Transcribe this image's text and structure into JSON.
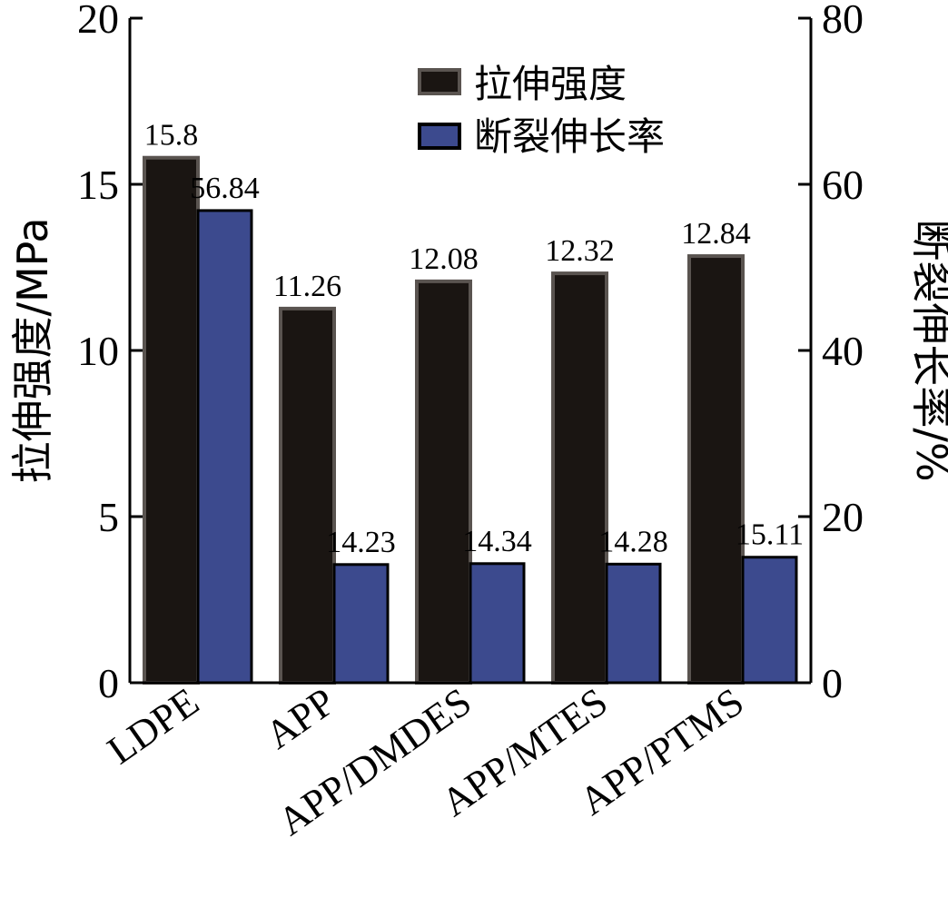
{
  "chart_data": {
    "type": "bar",
    "categories": [
      "LDPE",
      "APP",
      "APP/DMDES",
      "APP/MTES",
      "APP/PTMS"
    ],
    "series": [
      {
        "name": "拉伸强度",
        "axis": "left",
        "color": "#1a1512",
        "edge_color": "#5a5450",
        "values": [
          15.8,
          11.26,
          12.08,
          12.32,
          12.84
        ],
        "labels": [
          "15.8",
          "11.26",
          "12.08",
          "12.32",
          "12.84"
        ]
      },
      {
        "name": "断裂伸长率",
        "axis": "right",
        "color": "#3c4a8e",
        "edge_color": "#000000",
        "values": [
          56.84,
          14.23,
          14.34,
          14.28,
          15.11
        ],
        "labels": [
          "56.84",
          "14.23",
          "14.34",
          "14.28",
          "15.11"
        ]
      }
    ],
    "y_left": {
      "label": "拉伸强度/MPa",
      "range": [
        0,
        20
      ],
      "ticks": [
        "0",
        "5",
        "10",
        "15",
        "20"
      ]
    },
    "y_right": {
      "label": "断裂伸长率/%",
      "range": [
        0,
        80
      ],
      "ticks": [
        "0",
        "20",
        "40",
        "60",
        "80"
      ]
    },
    "legend": "top-right",
    "grid": false
  }
}
